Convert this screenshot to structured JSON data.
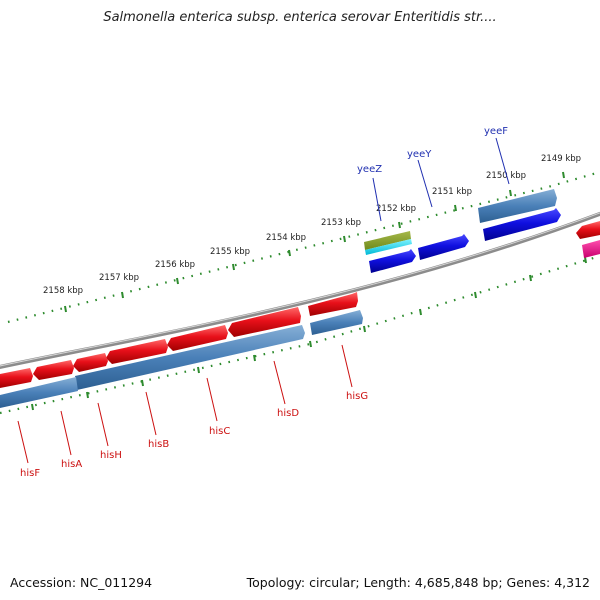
{
  "title": "Salmonella enterica subsp. enterica serovar Enteritidis str....",
  "footer": {
    "accession": "Accession: NC_011294",
    "summary": "Topology: circular; Length: 4,685,848 bp; Genes: 4,312"
  },
  "colors": {
    "backbone": "#8c8c8c",
    "tick": "#2e8b2e",
    "gene_forward_red": "#e8101a",
    "gene_blue": "#1010e0",
    "steel_blue": "#4a80b8",
    "label_red": "#cc1111",
    "label_blue": "#2030b0"
  },
  "scale_labels": [
    "2158 kbp",
    "2157 kbp",
    "2156 kbp",
    "2155 kbp",
    "2154 kbp",
    "2153 kbp",
    "2152 kbp",
    "2151 kbp",
    "2150 kbp",
    "2149 kbp"
  ],
  "gene_labels_top": [
    "yeeZ",
    "yeeY",
    "yeeF"
  ],
  "gene_labels_bottom": [
    "hisF",
    "hisA",
    "hisH",
    "hisB",
    "hisC",
    "hisD",
    "hisG"
  ]
}
